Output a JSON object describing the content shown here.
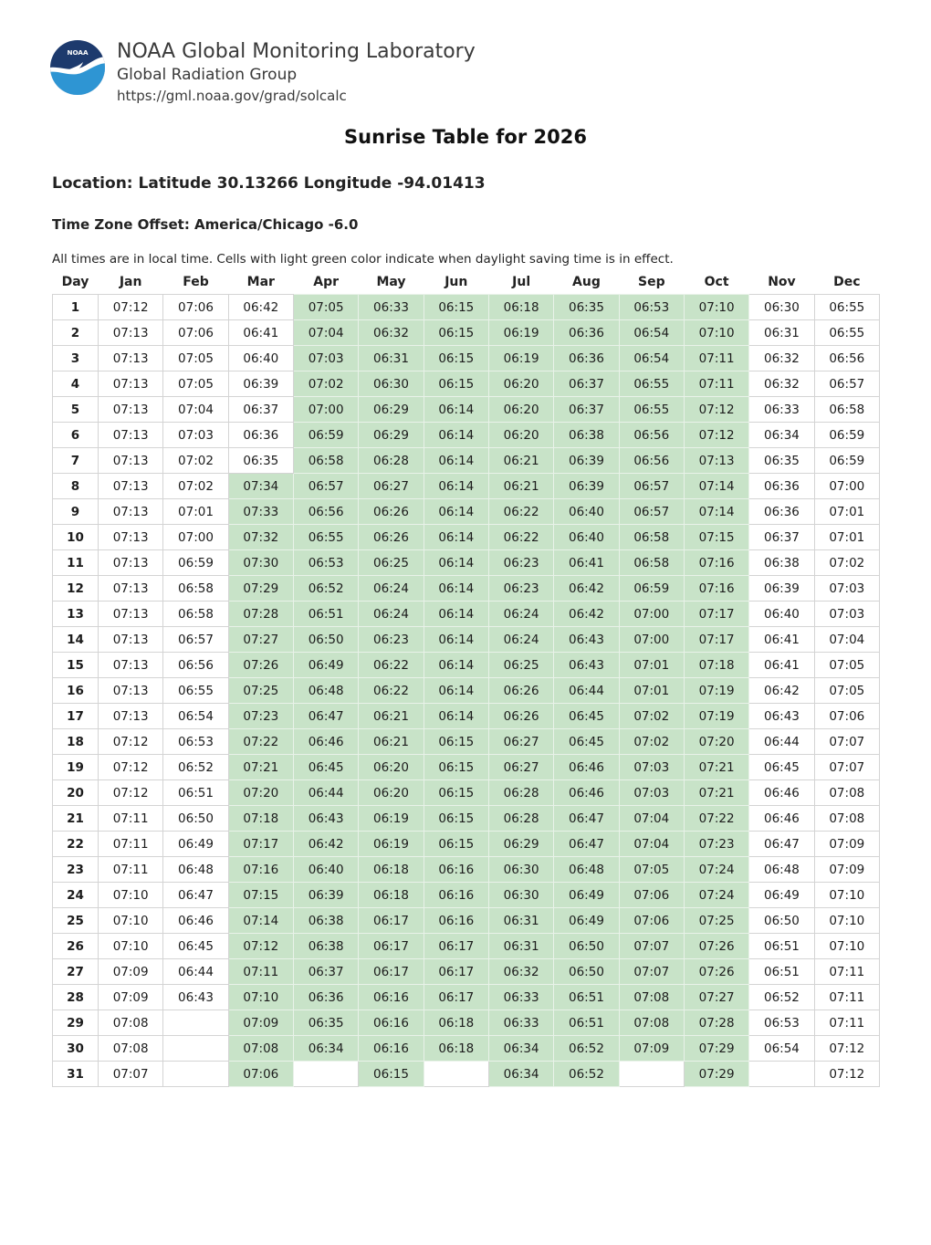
{
  "header": {
    "logo_name": "noaa-logo",
    "logo_text": "NOAA",
    "org_name": "NOAA Global Monitoring Laboratory",
    "group_name": "Global Radiation Group",
    "url": "https://gml.noaa.gov/grad/solcalc"
  },
  "title": "Sunrise Table for 2026",
  "location_line": "Location: Latitude 30.13266 Longitude -94.01413",
  "timezone_line": "Time Zone Offset: America/Chicago -6.0",
  "note": "All times are in local time. Cells with light green color indicate when daylight saving time is in effect.",
  "colors": {
    "dst_green": "#c8e3c8",
    "grid_gray": "#d4d4d4",
    "logo_navy": "#1d3a6d",
    "logo_blue": "#2e95d3"
  },
  "table": {
    "columns": [
      "Day",
      "Jan",
      "Feb",
      "Mar",
      "Apr",
      "May",
      "Jun",
      "Jul",
      "Aug",
      "Sep",
      "Oct",
      "Nov",
      "Dec"
    ],
    "dst_ranges": {
      "Mar": [
        8,
        31
      ],
      "Apr": [
        1,
        30
      ],
      "May": [
        1,
        31
      ],
      "Jun": [
        1,
        30
      ],
      "Jul": [
        1,
        31
      ],
      "Aug": [
        1,
        31
      ],
      "Sep": [
        1,
        30
      ],
      "Oct": [
        1,
        31
      ]
    },
    "rows": [
      [
        "1",
        "07:12",
        "07:06",
        "06:42",
        "07:05",
        "06:33",
        "06:15",
        "06:18",
        "06:35",
        "06:53",
        "07:10",
        "06:30",
        "06:55"
      ],
      [
        "2",
        "07:13",
        "07:06",
        "06:41",
        "07:04",
        "06:32",
        "06:15",
        "06:19",
        "06:36",
        "06:54",
        "07:10",
        "06:31",
        "06:55"
      ],
      [
        "3",
        "07:13",
        "07:05",
        "06:40",
        "07:03",
        "06:31",
        "06:15",
        "06:19",
        "06:36",
        "06:54",
        "07:11",
        "06:32",
        "06:56"
      ],
      [
        "4",
        "07:13",
        "07:05",
        "06:39",
        "07:02",
        "06:30",
        "06:15",
        "06:20",
        "06:37",
        "06:55",
        "07:11",
        "06:32",
        "06:57"
      ],
      [
        "5",
        "07:13",
        "07:04",
        "06:37",
        "07:00",
        "06:29",
        "06:14",
        "06:20",
        "06:37",
        "06:55",
        "07:12",
        "06:33",
        "06:58"
      ],
      [
        "6",
        "07:13",
        "07:03",
        "06:36",
        "06:59",
        "06:29",
        "06:14",
        "06:20",
        "06:38",
        "06:56",
        "07:12",
        "06:34",
        "06:59"
      ],
      [
        "7",
        "07:13",
        "07:02",
        "06:35",
        "06:58",
        "06:28",
        "06:14",
        "06:21",
        "06:39",
        "06:56",
        "07:13",
        "06:35",
        "06:59"
      ],
      [
        "8",
        "07:13",
        "07:02",
        "07:34",
        "06:57",
        "06:27",
        "06:14",
        "06:21",
        "06:39",
        "06:57",
        "07:14",
        "06:36",
        "07:00"
      ],
      [
        "9",
        "07:13",
        "07:01",
        "07:33",
        "06:56",
        "06:26",
        "06:14",
        "06:22",
        "06:40",
        "06:57",
        "07:14",
        "06:36",
        "07:01"
      ],
      [
        "10",
        "07:13",
        "07:00",
        "07:32",
        "06:55",
        "06:26",
        "06:14",
        "06:22",
        "06:40",
        "06:58",
        "07:15",
        "06:37",
        "07:01"
      ],
      [
        "11",
        "07:13",
        "06:59",
        "07:30",
        "06:53",
        "06:25",
        "06:14",
        "06:23",
        "06:41",
        "06:58",
        "07:16",
        "06:38",
        "07:02"
      ],
      [
        "12",
        "07:13",
        "06:58",
        "07:29",
        "06:52",
        "06:24",
        "06:14",
        "06:23",
        "06:42",
        "06:59",
        "07:16",
        "06:39",
        "07:03"
      ],
      [
        "13",
        "07:13",
        "06:58",
        "07:28",
        "06:51",
        "06:24",
        "06:14",
        "06:24",
        "06:42",
        "07:00",
        "07:17",
        "06:40",
        "07:03"
      ],
      [
        "14",
        "07:13",
        "06:57",
        "07:27",
        "06:50",
        "06:23",
        "06:14",
        "06:24",
        "06:43",
        "07:00",
        "07:17",
        "06:41",
        "07:04"
      ],
      [
        "15",
        "07:13",
        "06:56",
        "07:26",
        "06:49",
        "06:22",
        "06:14",
        "06:25",
        "06:43",
        "07:01",
        "07:18",
        "06:41",
        "07:05"
      ],
      [
        "16",
        "07:13",
        "06:55",
        "07:25",
        "06:48",
        "06:22",
        "06:14",
        "06:26",
        "06:44",
        "07:01",
        "07:19",
        "06:42",
        "07:05"
      ],
      [
        "17",
        "07:13",
        "06:54",
        "07:23",
        "06:47",
        "06:21",
        "06:14",
        "06:26",
        "06:45",
        "07:02",
        "07:19",
        "06:43",
        "07:06"
      ],
      [
        "18",
        "07:12",
        "06:53",
        "07:22",
        "06:46",
        "06:21",
        "06:15",
        "06:27",
        "06:45",
        "07:02",
        "07:20",
        "06:44",
        "07:07"
      ],
      [
        "19",
        "07:12",
        "06:52",
        "07:21",
        "06:45",
        "06:20",
        "06:15",
        "06:27",
        "06:46",
        "07:03",
        "07:21",
        "06:45",
        "07:07"
      ],
      [
        "20",
        "07:12",
        "06:51",
        "07:20",
        "06:44",
        "06:20",
        "06:15",
        "06:28",
        "06:46",
        "07:03",
        "07:21",
        "06:46",
        "07:08"
      ],
      [
        "21",
        "07:11",
        "06:50",
        "07:18",
        "06:43",
        "06:19",
        "06:15",
        "06:28",
        "06:47",
        "07:04",
        "07:22",
        "06:46",
        "07:08"
      ],
      [
        "22",
        "07:11",
        "06:49",
        "07:17",
        "06:42",
        "06:19",
        "06:15",
        "06:29",
        "06:47",
        "07:04",
        "07:23",
        "06:47",
        "07:09"
      ],
      [
        "23",
        "07:11",
        "06:48",
        "07:16",
        "06:40",
        "06:18",
        "06:16",
        "06:30",
        "06:48",
        "07:05",
        "07:24",
        "06:48",
        "07:09"
      ],
      [
        "24",
        "07:10",
        "06:47",
        "07:15",
        "06:39",
        "06:18",
        "06:16",
        "06:30",
        "06:49",
        "07:06",
        "07:24",
        "06:49",
        "07:10"
      ],
      [
        "25",
        "07:10",
        "06:46",
        "07:14",
        "06:38",
        "06:17",
        "06:16",
        "06:31",
        "06:49",
        "07:06",
        "07:25",
        "06:50",
        "07:10"
      ],
      [
        "26",
        "07:10",
        "06:45",
        "07:12",
        "06:38",
        "06:17",
        "06:17",
        "06:31",
        "06:50",
        "07:07",
        "07:26",
        "06:51",
        "07:10"
      ],
      [
        "27",
        "07:09",
        "06:44",
        "07:11",
        "06:37",
        "06:17",
        "06:17",
        "06:32",
        "06:50",
        "07:07",
        "07:26",
        "06:51",
        "07:11"
      ],
      [
        "28",
        "07:09",
        "06:43",
        "07:10",
        "06:36",
        "06:16",
        "06:17",
        "06:33",
        "06:51",
        "07:08",
        "07:27",
        "06:52",
        "07:11"
      ],
      [
        "29",
        "07:08",
        "",
        "07:09",
        "06:35",
        "06:16",
        "06:18",
        "06:33",
        "06:51",
        "07:08",
        "07:28",
        "06:53",
        "07:11"
      ],
      [
        "30",
        "07:08",
        "",
        "07:08",
        "06:34",
        "06:16",
        "06:18",
        "06:34",
        "06:52",
        "07:09",
        "07:29",
        "06:54",
        "07:12"
      ],
      [
        "31",
        "07:07",
        "",
        "07:06",
        "",
        "06:15",
        "",
        "06:34",
        "06:52",
        "",
        "07:29",
        "",
        "07:12"
      ]
    ]
  }
}
